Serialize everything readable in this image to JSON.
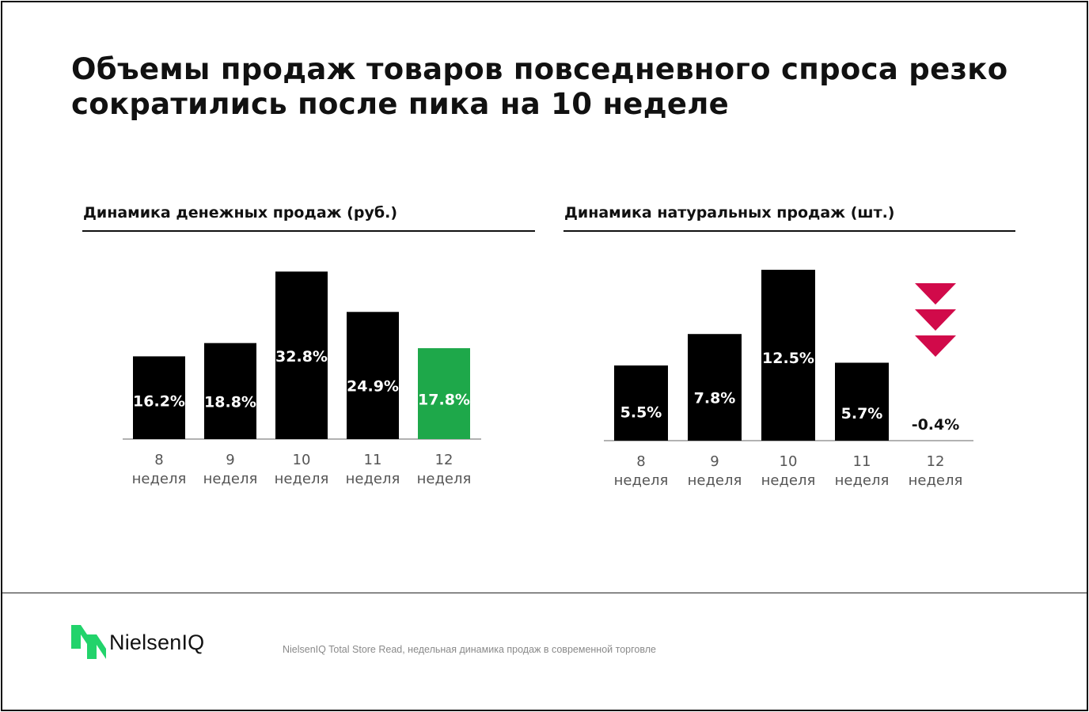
{
  "headline": "Объемы продаж товаров повседневного спроса резко сократились после пика на 10 неделе",
  "colors": {
    "bar": "#000000",
    "highlight": "#1ea84a",
    "arrow": "#d10a4a",
    "axis": "#999999"
  },
  "footer": {
    "brand": "NielsenIQ",
    "source": "NielsenIQ Total Store Read, недельная динамика продаж в современной торговле"
  },
  "chart_data": [
    {
      "type": "bar",
      "title": "Динамика денежных продаж (руб.)",
      "categories": [
        "8",
        "9",
        "10",
        "11",
        "12"
      ],
      "category_sublabel": "неделя",
      "values": [
        16.2,
        18.8,
        32.8,
        24.9,
        17.8
      ],
      "value_labels": [
        "16.2%",
        "18.8%",
        "32.8%",
        "24.9%",
        "17.8%"
      ],
      "highlight_index": 4,
      "xlabel": "",
      "ylabel": "",
      "ylim": [
        0,
        33
      ],
      "grid": false
    },
    {
      "type": "bar",
      "title": "Динамика натуральных продаж (шт.)",
      "categories": [
        "8",
        "9",
        "10",
        "11",
        "12"
      ],
      "category_sublabel": "неделя",
      "values": [
        5.5,
        7.8,
        12.5,
        5.7,
        -0.4
      ],
      "value_labels": [
        "5.5%",
        "7.8%",
        "12.5%",
        "5.7%",
        "-0.4%"
      ],
      "annotation": "triple down arrow above week 12",
      "xlabel": "",
      "ylabel": "",
      "ylim": [
        0,
        12.5
      ],
      "grid": false
    }
  ]
}
